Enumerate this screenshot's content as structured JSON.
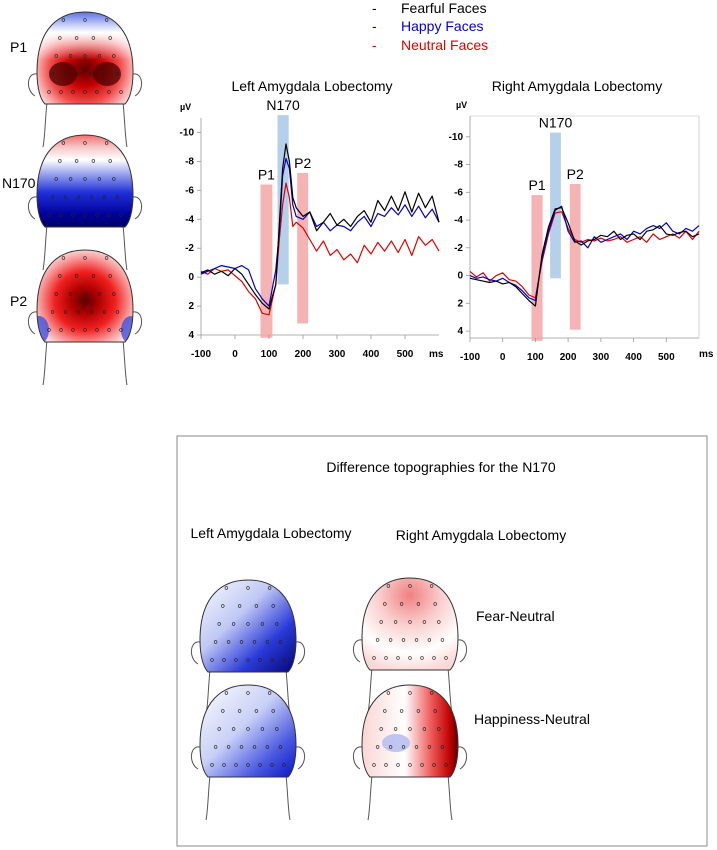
{
  "legend": {
    "items": [
      {
        "label": "Fearful Faces",
        "color": "#000000"
      },
      {
        "label": "Happy Faces",
        "color": "#0000cc"
      },
      {
        "label": "Neutral Faces",
        "color": "#e00000"
      }
    ]
  },
  "topo_labels": [
    "P1",
    "N170",
    "P2"
  ],
  "colors": {
    "fear": "#000000",
    "happy": "#0000cc",
    "neutral": "#e00000",
    "component_red": "#f4a6a6",
    "component_blue": "#a8c8e8",
    "topo_red_dark": "#5a0000",
    "topo_blue_dark": "#00006e"
  },
  "chart_data": [
    {
      "type": "line",
      "title": "Left Amygdala Lobectomy",
      "ylabel": "µV",
      "xlabel": "ms",
      "xlim": [
        -100,
        600
      ],
      "ylim": [
        4,
        -11
      ],
      "y_inverted": true,
      "xticks": [
        -100,
        0,
        100,
        200,
        300,
        400,
        500
      ],
      "yticks": [
        -10,
        -8,
        -6,
        -4,
        -2,
        0,
        2,
        4
      ],
      "components": [
        {
          "label": "P1",
          "x": [
            75,
            110
          ],
          "y": [
            4.2,
            -6.4
          ],
          "color": "red"
        },
        {
          "label": "N170",
          "x": [
            125,
            158
          ],
          "y": [
            0.5,
            -11.2
          ],
          "color": "blue"
        },
        {
          "label": "P2",
          "x": [
            183,
            215
          ],
          "y": [
            3.2,
            -7.2
          ],
          "color": "red"
        }
      ],
      "x": [
        -100,
        -80,
        -60,
        -40,
        -20,
        0,
        20,
        40,
        60,
        80,
        100,
        120,
        130,
        140,
        150,
        160,
        170,
        180,
        200,
        220,
        240,
        260,
        280,
        300,
        320,
        340,
        360,
        380,
        400,
        420,
        440,
        460,
        480,
        500,
        520,
        540,
        560,
        580,
        600
      ],
      "series": [
        {
          "name": "Fearful Faces",
          "values": [
            -0.3,
            -0.5,
            -0.2,
            -0.4,
            -0.1,
            -0.6,
            -0.2,
            0.5,
            1.2,
            1.8,
            2.2,
            0.5,
            -3.5,
            -7.5,
            -9.2,
            -8.0,
            -5.5,
            -4.8,
            -4.2,
            -4.5,
            -3.2,
            -3.8,
            -4.4,
            -3.6,
            -4.0,
            -3.5,
            -4.2,
            -4.6,
            -3.8,
            -5.3,
            -4.6,
            -5.6,
            -4.6,
            -5.9,
            -4.5,
            -5.8,
            -4.8,
            -5.6,
            -3.8
          ]
        },
        {
          "name": "Happy Faces",
          "values": [
            -0.2,
            -0.4,
            -0.6,
            -0.8,
            -0.7,
            -0.6,
            -0.8,
            -0.5,
            0.8,
            1.5,
            2.0,
            -0.5,
            -3.0,
            -7.0,
            -8.2,
            -7.5,
            -5.0,
            -4.2,
            -4.0,
            -4.5,
            -3.5,
            -3.8,
            -3.2,
            -3.6,
            -3.5,
            -3.2,
            -3.8,
            -4.2,
            -3.5,
            -4.4,
            -4.2,
            -4.8,
            -4.3,
            -5.0,
            -4.2,
            -4.9,
            -4.1,
            -4.7,
            -3.8
          ]
        },
        {
          "name": "Neutral Faces",
          "values": [
            -0.4,
            -0.2,
            -0.6,
            -0.4,
            -0.5,
            -0.1,
            0.3,
            1.0,
            1.5,
            2.5,
            2.6,
            0.5,
            -2.5,
            -5.0,
            -6.5,
            -5.5,
            -3.5,
            -3.8,
            -3.4,
            -2.6,
            -1.8,
            -2.5,
            -1.5,
            -1.9,
            -1.2,
            -1.6,
            -1.0,
            -2.2,
            -1.6,
            -2.4,
            -1.8,
            -2.5,
            -1.7,
            -2.6,
            -1.5,
            -2.8,
            -2.2,
            -2.6,
            -1.8
          ]
        }
      ]
    },
    {
      "type": "line",
      "title": "Right Amygdala Lobectomy",
      "ylabel": "µV",
      "xlabel": "ms",
      "xlim": [
        -100,
        600
      ],
      "ylim": [
        4.5,
        -11.5
      ],
      "y_inverted": true,
      "xticks": [
        -100,
        0,
        100,
        200,
        300,
        400,
        500
      ],
      "yticks": [
        -10,
        -8,
        -6,
        -4,
        -2,
        0,
        2,
        4
      ],
      "components": [
        {
          "label": "P1",
          "x": [
            88,
            122
          ],
          "y": [
            4.7,
            -5.8
          ],
          "color": "red"
        },
        {
          "label": "N170",
          "x": [
            145,
            178
          ],
          "y": [
            0.2,
            -10.3
          ],
          "color": "blue"
        },
        {
          "label": "P2",
          "x": [
            205,
            238
          ],
          "y": [
            3.9,
            -6.6
          ],
          "color": "red"
        }
      ],
      "x": [
        -100,
        -80,
        -60,
        -40,
        -20,
        0,
        20,
        40,
        60,
        80,
        100,
        120,
        140,
        160,
        180,
        200,
        220,
        240,
        260,
        280,
        300,
        320,
        340,
        360,
        380,
        400,
        420,
        440,
        460,
        480,
        500,
        520,
        540,
        560,
        580,
        600
      ],
      "series": [
        {
          "name": "Fearful Faces",
          "values": [
            0.2,
            0.3,
            0.4,
            0.5,
            0.4,
            0.6,
            0.5,
            0.8,
            1.3,
            1.8,
            2.2,
            -1.5,
            -3.5,
            -4.8,
            -4.9,
            -3.8,
            -2.5,
            -2.2,
            -2.5,
            -2.6,
            -2.9,
            -2.8,
            -3.2,
            -2.6,
            -2.9,
            -3.0,
            -2.6,
            -3.2,
            -3.3,
            -3.6,
            -3.0,
            -2.9,
            -3.1,
            -3.2,
            -2.8,
            -3.0
          ]
        },
        {
          "name": "Happy Faces",
          "values": [
            0.0,
            0.2,
            0.1,
            0.3,
            0.4,
            0.2,
            0.5,
            0.7,
            1.1,
            1.6,
            1.8,
            -1.2,
            -3.2,
            -4.7,
            -5.0,
            -3.2,
            -2.4,
            -2.5,
            -2.0,
            -2.8,
            -2.4,
            -2.6,
            -2.8,
            -3.0,
            -2.6,
            -3.2,
            -3.0,
            -3.4,
            -3.6,
            -3.4,
            -3.8,
            -3.2,
            -3.0,
            -3.4,
            -3.2,
            -3.6
          ]
        },
        {
          "name": "Neutral Faces",
          "values": [
            -0.3,
            0.1,
            -0.2,
            0.4,
            0.0,
            -0.2,
            0.3,
            0.4,
            0.8,
            1.4,
            1.6,
            -1.0,
            -3.0,
            -4.5,
            -4.6,
            -3.4,
            -2.6,
            -2.4,
            -2.6,
            -2.5,
            -2.7,
            -2.5,
            -2.6,
            -2.8,
            -2.4,
            -2.6,
            -2.8,
            -2.4,
            -3.0,
            -2.6,
            -2.8,
            -3.0,
            -2.7,
            -3.2,
            -2.6,
            -3.2
          ]
        }
      ]
    }
  ],
  "difference_panel": {
    "title": "Difference topographies for the N170",
    "left_heading": "Left Amygdala Lobectomy",
    "right_heading": "Right Amygdala Lobectomy",
    "row_labels": [
      "Fear-Neutral",
      "Happiness-Neutral"
    ]
  }
}
